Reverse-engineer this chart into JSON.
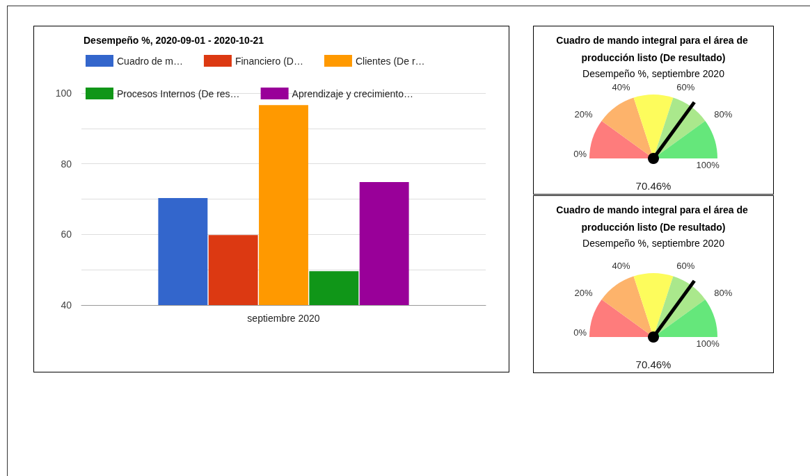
{
  "chart_data": [
    {
      "type": "bar",
      "title": "Desempeño %, 2020-09-01 - 2020-10-21",
      "categories": [
        "septiembre 2020"
      ],
      "series": [
        {
          "name": "Cuadro de m…",
          "color": "#3366cc",
          "values": [
            70.3
          ]
        },
        {
          "name": "Financiero (D…",
          "color": "#dc3912",
          "values": [
            59.8
          ]
        },
        {
          "name": "Clientes (De r…",
          "color": "#ff9900",
          "values": [
            96.6
          ]
        },
        {
          "name": "Procesos Internos (De res…",
          "color": "#109618",
          "values": [
            49.6
          ]
        },
        {
          "name": "Aprendizaje y crecimiento…",
          "color": "#990099",
          "values": [
            74.8
          ]
        }
      ],
      "ylim": [
        40,
        100
      ],
      "yticks": [
        40,
        {
          "value": 50,
          "label": null
        },
        60,
        {
          "value": 70,
          "label": null
        },
        80,
        {
          "value": 90,
          "label": null
        },
        100
      ],
      "grid": "y",
      "legend": "top"
    },
    {
      "type": "pie",
      "title": "Cuadro de mando integral para el área de producción listo (De resultado)",
      "subtitle": "Desempeño %, septiembre 2020",
      "categories": [
        "0%",
        "20%",
        "40%",
        "60%",
        "80%"
      ],
      "values": [
        20,
        20,
        20,
        20,
        20
      ],
      "colors": [
        "#fe7c7c",
        "#fdb36b",
        "#fdfc5c",
        "#aae88c",
        "#65e77b"
      ],
      "needle": "60%",
      "annotations": [
        "100%",
        "70.46%"
      ]
    },
    {
      "type": "pie",
      "title": "Cuadro de mando integral para el área de producción listo (De resultado)",
      "subtitle": "Desempeño %, septiembre 2020",
      "categories": [
        "0%",
        "20%",
        "40%",
        "60%",
        "80%"
      ],
      "values": [
        20,
        20,
        20,
        20,
        20
      ],
      "colors": [
        "#fe7c7c",
        "#fdb36b",
        "#fdfc5c",
        "#aae88c",
        "#65e77b"
      ],
      "needle": "60%",
      "annotations": [
        "100%",
        "70.46%"
      ]
    }
  ]
}
